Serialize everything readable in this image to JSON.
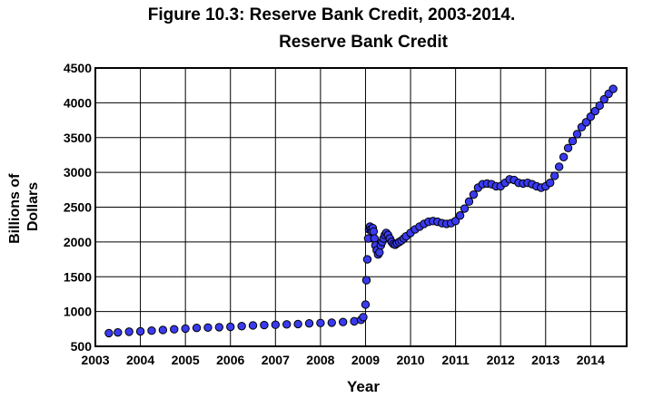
{
  "figure_title": "Figure 10.3: Reserve Bank Credit, 2003-2014.",
  "chart_data": {
    "type": "scatter",
    "title": "Reserve Bank Credit",
    "xlabel": "Year",
    "ylabel": "Billions of Dollars",
    "ylabel_lines": [
      "Billions of",
      "Dollars"
    ],
    "xlim": [
      2003.0,
      2014.8
    ],
    "ylim": [
      500,
      4500
    ],
    "xticks": [
      2003,
      2004,
      2005,
      2006,
      2007,
      2008,
      2009,
      2010,
      2011,
      2012,
      2013,
      2014
    ],
    "yticks": [
      500,
      1000,
      1500,
      2000,
      2500,
      3000,
      3500,
      4000,
      4500
    ],
    "grid": true,
    "marker_color": "#3a3af0",
    "series": [
      {
        "x": [
          2003.3,
          2003.5,
          2003.75,
          2004.0,
          2004.25,
          2004.5,
          2004.75,
          2005.0,
          2005.25,
          2005.5,
          2005.75,
          2006.0,
          2006.25,
          2006.5,
          2006.75,
          2007.0,
          2007.25,
          2007.5,
          2007.75,
          2008.0,
          2008.25,
          2008.5,
          2008.75,
          2008.9,
          2008.95,
          2009.0,
          2009.02,
          2009.04,
          2009.06,
          2009.08,
          2009.1,
          2009.12,
          2009.14,
          2009.16,
          2009.18,
          2009.2,
          2009.22,
          2009.25,
          2009.28,
          2009.31,
          2009.34,
          2009.37,
          2009.4,
          2009.43,
          2009.46,
          2009.5,
          2009.54,
          2009.58,
          2009.62,
          2009.66,
          2009.7,
          2009.75,
          2009.8,
          2009.85,
          2009.9,
          2010.0,
          2010.1,
          2010.2,
          2010.3,
          2010.4,
          2010.5,
          2010.6,
          2010.7,
          2010.8,
          2010.9,
          2011.0,
          2011.1,
          2011.2,
          2011.3,
          2011.4,
          2011.5,
          2011.6,
          2011.7,
          2011.8,
          2011.9,
          2012.0,
          2012.1,
          2012.2,
          2012.3,
          2012.4,
          2012.5,
          2012.6,
          2012.7,
          2012.8,
          2012.9,
          2013.0,
          2013.1,
          2013.2,
          2013.3,
          2013.4,
          2013.5,
          2013.6,
          2013.7,
          2013.8,
          2013.9,
          2014.0,
          2014.1,
          2014.2,
          2014.3,
          2014.4,
          2014.5
        ],
        "y": [
          690,
          700,
          710,
          715,
          725,
          735,
          745,
          755,
          765,
          770,
          775,
          780,
          790,
          800,
          805,
          810,
          815,
          820,
          830,
          835,
          840,
          850,
          860,
          880,
          920,
          1100,
          1450,
          1750,
          2050,
          2180,
          2220,
          2180,
          2150,
          2200,
          2150,
          2050,
          1950,
          1880,
          1820,
          1850,
          1950,
          2000,
          2050,
          2100,
          2130,
          2100,
          2050,
          2000,
          1970,
          1960,
          1980,
          2000,
          2020,
          2050,
          2080,
          2130,
          2180,
          2220,
          2260,
          2290,
          2300,
          2290,
          2270,
          2260,
          2270,
          2300,
          2380,
          2480,
          2580,
          2680,
          2780,
          2830,
          2840,
          2830,
          2800,
          2800,
          2850,
          2900,
          2890,
          2850,
          2840,
          2850,
          2830,
          2800,
          2780,
          2800,
          2850,
          2950,
          3080,
          3220,
          3350,
          3450,
          3550,
          3650,
          3720,
          3800,
          3880,
          3960,
          4050,
          4130,
          4200
        ]
      }
    ]
  }
}
